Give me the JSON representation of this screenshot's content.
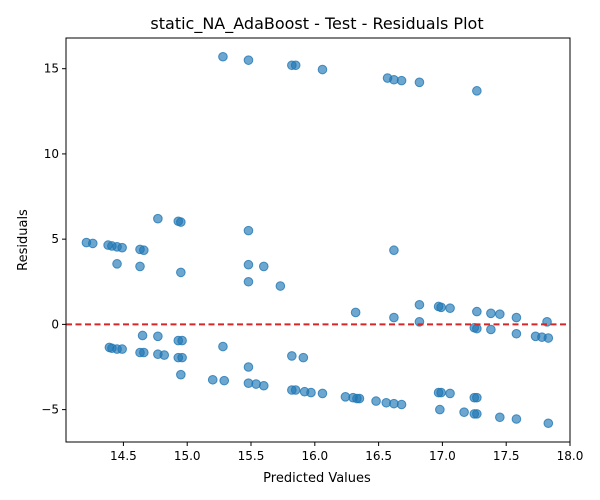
{
  "chart_data": {
    "type": "scatter",
    "title": "static_NA_AdaBoost - Test - Residuals Plot",
    "xlabel": "Predicted Values",
    "ylabel": "Residuals",
    "xlim": [
      14.05,
      18.0
    ],
    "ylim": [
      -6.9,
      16.8
    ],
    "xticks": [
      14.5,
      15.0,
      15.5,
      16.0,
      16.5,
      17.0,
      17.5,
      18.0
    ],
    "xtick_labels": [
      "14.5",
      "15.0",
      "15.5",
      "16.0",
      "16.5",
      "17.0",
      "17.5",
      "18.0"
    ],
    "yticks": [
      -5,
      0,
      5,
      10,
      15
    ],
    "ytick_labels": [
      "−5",
      "0",
      "5",
      "10",
      "15"
    ],
    "reference_line": {
      "y": 0,
      "style": "dashed",
      "color": "#d62728"
    },
    "point_color": "#1f77b4",
    "grid": false,
    "points": [
      [
        15.28,
        15.7
      ],
      [
        15.48,
        15.5
      ],
      [
        15.82,
        15.2
      ],
      [
        15.85,
        15.2
      ],
      [
        16.06,
        14.95
      ],
      [
        16.57,
        14.45
      ],
      [
        16.62,
        14.35
      ],
      [
        16.68,
        14.3
      ],
      [
        16.82,
        14.2
      ],
      [
        17.27,
        13.7
      ],
      [
        14.77,
        6.2
      ],
      [
        14.93,
        6.05
      ],
      [
        14.95,
        6.0
      ],
      [
        15.48,
        5.5
      ],
      [
        14.21,
        4.8
      ],
      [
        14.26,
        4.75
      ],
      [
        14.38,
        4.65
      ],
      [
        14.41,
        4.6
      ],
      [
        14.45,
        4.55
      ],
      [
        14.49,
        4.5
      ],
      [
        14.63,
        4.4
      ],
      [
        14.66,
        4.35
      ],
      [
        16.62,
        4.35
      ],
      [
        14.45,
        3.55
      ],
      [
        14.63,
        3.4
      ],
      [
        15.48,
        3.5
      ],
      [
        15.6,
        3.4
      ],
      [
        14.95,
        3.05
      ],
      [
        15.48,
        2.5
      ],
      [
        15.73,
        2.25
      ],
      [
        16.82,
        1.15
      ],
      [
        16.97,
        1.05
      ],
      [
        16.99,
        1.0
      ],
      [
        17.06,
        0.95
      ],
      [
        16.32,
        0.7
      ],
      [
        17.27,
        0.75
      ],
      [
        17.38,
        0.65
      ],
      [
        17.45,
        0.6
      ],
      [
        16.62,
        0.4
      ],
      [
        17.58,
        0.4
      ],
      [
        16.82,
        0.15
      ],
      [
        17.82,
        0.15
      ],
      [
        17.25,
        -0.2
      ],
      [
        17.27,
        -0.25
      ],
      [
        17.38,
        -0.3
      ],
      [
        17.58,
        -0.55
      ],
      [
        14.65,
        -0.65
      ],
      [
        14.77,
        -0.7
      ],
      [
        17.73,
        -0.7
      ],
      [
        17.78,
        -0.75
      ],
      [
        17.83,
        -0.8
      ],
      [
        14.93,
        -0.95
      ],
      [
        14.96,
        -0.95
      ],
      [
        15.28,
        -1.3
      ],
      [
        14.39,
        -1.35
      ],
      [
        14.41,
        -1.4
      ],
      [
        14.45,
        -1.45
      ],
      [
        14.49,
        -1.45
      ],
      [
        14.63,
        -1.65
      ],
      [
        14.66,
        -1.65
      ],
      [
        14.77,
        -1.75
      ],
      [
        14.82,
        -1.8
      ],
      [
        14.93,
        -1.95
      ],
      [
        14.96,
        -1.95
      ],
      [
        15.82,
        -1.85
      ],
      [
        15.91,
        -1.95
      ],
      [
        15.48,
        -2.5
      ],
      [
        14.95,
        -2.95
      ],
      [
        15.2,
        -3.25
      ],
      [
        15.29,
        -3.3
      ],
      [
        15.48,
        -3.45
      ],
      [
        15.54,
        -3.5
      ],
      [
        15.6,
        -3.6
      ],
      [
        15.82,
        -3.85
      ],
      [
        15.85,
        -3.85
      ],
      [
        15.92,
        -3.95
      ],
      [
        15.97,
        -4.0
      ],
      [
        16.06,
        -4.05
      ],
      [
        16.24,
        -4.25
      ],
      [
        16.3,
        -4.3
      ],
      [
        16.33,
        -4.35
      ],
      [
        16.35,
        -4.35
      ],
      [
        16.48,
        -4.5
      ],
      [
        16.56,
        -4.6
      ],
      [
        16.62,
        -4.65
      ],
      [
        16.68,
        -4.7
      ],
      [
        16.97,
        -4.0
      ],
      [
        16.99,
        -4.0
      ],
      [
        17.06,
        -4.05
      ],
      [
        17.25,
        -4.3
      ],
      [
        17.27,
        -4.3
      ],
      [
        16.98,
        -5.0
      ],
      [
        17.17,
        -5.15
      ],
      [
        17.25,
        -5.25
      ],
      [
        17.27,
        -5.25
      ],
      [
        17.45,
        -5.45
      ],
      [
        17.58,
        -5.55
      ],
      [
        17.83,
        -5.8
      ]
    ]
  }
}
